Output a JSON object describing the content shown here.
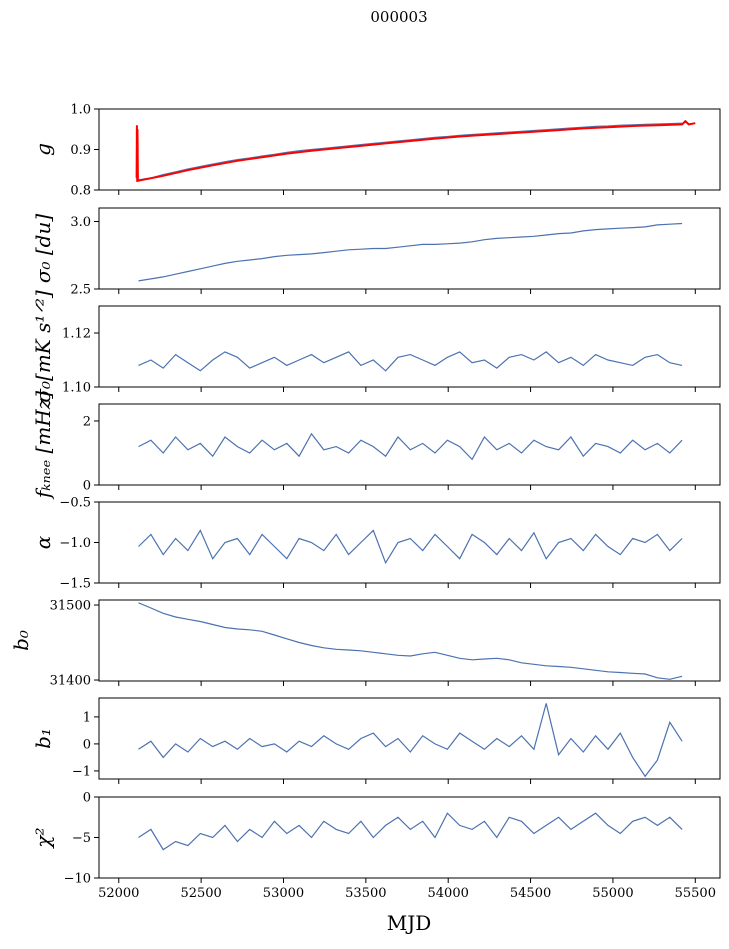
{
  "chart_data": {
    "type": "line",
    "title": "000003",
    "xlabel": "MJD",
    "xlim": [
      51880,
      55650
    ],
    "xticks": [
      52000,
      52500,
      53000,
      53500,
      54000,
      54500,
      55000,
      55500
    ],
    "x": [
      52120,
      52195,
      52270,
      52345,
      52420,
      52495,
      52570,
      52645,
      52720,
      52795,
      52870,
      52945,
      53020,
      53095,
      53170,
      53245,
      53320,
      53395,
      53470,
      53545,
      53620,
      53695,
      53770,
      53845,
      53920,
      53995,
      54070,
      54145,
      54220,
      54295,
      54370,
      54445,
      54520,
      54595,
      54670,
      54745,
      54820,
      54895,
      54970,
      55045,
      55120,
      55195,
      55270,
      55345,
      55420
    ],
    "panels": [
      {
        "ylabel": "g",
        "ylim": [
          0.8,
          1.0
        ],
        "yticks": [
          0.8,
          0.9,
          1.0
        ],
        "ticklabels": [
          "0.8",
          "0.9",
          "1.0"
        ],
        "series": [
          {
            "name": "g",
            "color": "#4c72b0",
            "values": [
              0.825,
              0.83,
              0.838,
              0.845,
              0.852,
              0.858,
              0.864,
              0.87,
              0.875,
              0.879,
              0.884,
              0.888,
              0.893,
              0.897,
              0.9,
              0.903,
              0.906,
              0.909,
              0.912,
              0.915,
              0.918,
              0.921,
              0.924,
              0.927,
              0.93,
              0.932,
              0.935,
              0.937,
              0.939,
              0.941,
              0.943,
              0.945,
              0.947,
              0.949,
              0.951,
              0.953,
              0.955,
              0.957,
              0.958,
              0.96,
              0.961,
              0.962,
              0.963,
              0.964,
              0.965
            ]
          },
          {
            "name": "g_model",
            "color": "#ff0000",
            "x": [
              52108,
              52110,
              52112,
              52114,
              52116,
              52120,
              52270,
              52420,
              52570,
              52720,
              52870,
              53020,
              53170,
              53320,
              53470,
              53620,
              53770,
              53920,
              54070,
              54220,
              54370,
              54520,
              54670,
              54820,
              54970,
              55120,
              55270,
              55420,
              55440,
              55460,
              55500
            ],
            "values": [
              0.83,
              0.96,
              0.82,
              0.95,
              0.825,
              0.823,
              0.835,
              0.849,
              0.861,
              0.872,
              0.881,
              0.89,
              0.897,
              0.903,
              0.909,
              0.915,
              0.921,
              0.927,
              0.932,
              0.936,
              0.94,
              0.944,
              0.948,
              0.952,
              0.955,
              0.958,
              0.96,
              0.962,
              0.97,
              0.962,
              0.965
            ]
          }
        ]
      },
      {
        "ylabel": "σ₀ [du]",
        "ylim": [
          2.5,
          3.1
        ],
        "yticks": [
          2.5,
          3.0
        ],
        "ticklabels": [
          "2.5",
          "3.0"
        ],
        "series": [
          {
            "name": "sigma0_du",
            "color": "#4c72b0",
            "values": [
              2.56,
              2.575,
              2.59,
              2.61,
              2.63,
              2.65,
              2.67,
              2.69,
              2.705,
              2.715,
              2.725,
              2.74,
              2.75,
              2.755,
              2.76,
              2.77,
              2.78,
              2.79,
              2.795,
              2.8,
              2.8,
              2.81,
              2.82,
              2.83,
              2.83,
              2.835,
              2.84,
              2.85,
              2.865,
              2.875,
              2.88,
              2.885,
              2.89,
              2.9,
              2.91,
              2.915,
              2.93,
              2.94,
              2.945,
              2.95,
              2.955,
              2.96,
              2.975,
              2.98,
              2.985
            ]
          }
        ]
      },
      {
        "ylabel": "σ₀[mK s¹ᐟ²]",
        "ylim": [
          1.1,
          1.13
        ],
        "yticks": [
          1.1,
          1.12
        ],
        "ticklabels": [
          "1.10",
          "1.12"
        ],
        "series": [
          {
            "name": "sigma0_mK",
            "color": "#4c72b0",
            "values": [
              1.108,
              1.11,
              1.107,
              1.112,
              1.109,
              1.106,
              1.11,
              1.113,
              1.111,
              1.107,
              1.109,
              1.111,
              1.108,
              1.11,
              1.112,
              1.109,
              1.111,
              1.113,
              1.108,
              1.11,
              1.106,
              1.111,
              1.112,
              1.11,
              1.108,
              1.111,
              1.113,
              1.109,
              1.11,
              1.107,
              1.111,
              1.112,
              1.11,
              1.113,
              1.109,
              1.111,
              1.108,
              1.112,
              1.11,
              1.109,
              1.108,
              1.111,
              1.112,
              1.109,
              1.108
            ]
          }
        ]
      },
      {
        "ylabel": "fₖₙₑₑ [mHz]",
        "ylim": [
          0,
          2.53
        ],
        "yticks": [
          0,
          2
        ],
        "ticklabels": [
          "0",
          "2"
        ],
        "series": [
          {
            "name": "fknee",
            "color": "#4c72b0",
            "values": [
              1.2,
              1.4,
              1.0,
              1.5,
              1.1,
              1.3,
              0.9,
              1.5,
              1.2,
              1.0,
              1.4,
              1.1,
              1.3,
              0.9,
              1.6,
              1.1,
              1.2,
              1.0,
              1.4,
              1.2,
              0.9,
              1.5,
              1.1,
              1.3,
              1.0,
              1.4,
              1.2,
              0.8,
              1.5,
              1.1,
              1.3,
              1.0,
              1.4,
              1.2,
              1.1,
              1.5,
              0.9,
              1.3,
              1.2,
              1.0,
              1.4,
              1.1,
              1.3,
              1.0,
              1.4
            ]
          }
        ]
      },
      {
        "ylabel": "α",
        "ylim": [
          -1.5,
          -0.5
        ],
        "yticks": [
          -1.5,
          -1.0,
          -0.5
        ],
        "ticklabels": [
          "−1.5",
          "−1.0",
          "−0.5"
        ],
        "series": [
          {
            "name": "alpha",
            "color": "#4c72b0",
            "values": [
              -1.05,
              -0.9,
              -1.15,
              -0.95,
              -1.1,
              -0.85,
              -1.2,
              -1.0,
              -0.95,
              -1.15,
              -0.9,
              -1.05,
              -1.2,
              -0.95,
              -1.0,
              -1.1,
              -0.9,
              -1.15,
              -1.0,
              -0.85,
              -1.25,
              -1.0,
              -0.95,
              -1.1,
              -0.9,
              -1.05,
              -1.2,
              -0.9,
              -1.0,
              -1.15,
              -0.95,
              -1.1,
              -0.88,
              -1.2,
              -1.0,
              -0.95,
              -1.1,
              -0.9,
              -1.05,
              -1.15,
              -0.95,
              -1.0,
              -0.9,
              -1.1,
              -0.95
            ]
          }
        ]
      },
      {
        "ylabel": "b₀",
        "ylim": [
          31398.7,
          31506.7
        ],
        "yticks": [
          31400,
          31500
        ],
        "ticklabels": [
          "31400",
          "31500"
        ],
        "series": [
          {
            "name": "b0",
            "color": "#4c72b0",
            "values": [
              31503,
              31496,
              31489,
              31484,
              31481,
              31478,
              31474,
              31470,
              31468,
              31467,
              31465,
              31460,
              31455,
              31450,
              31446,
              31443,
              31441,
              31440,
              31439,
              31437,
              31435,
              31433,
              31432,
              31435,
              31437,
              31433,
              31429,
              31427,
              31428,
              31429,
              31427,
              31423,
              31421,
              31419,
              31418,
              31417,
              31415,
              31413,
              31411,
              31410,
              31409,
              31408,
              31403,
              31401,
              31405
            ]
          }
        ]
      },
      {
        "ylabel": "b₁",
        "ylim": [
          -1.3,
          1.7
        ],
        "yticks": [
          -1,
          0,
          1
        ],
        "ticklabels": [
          "−1",
          "0",
          "1"
        ],
        "series": [
          {
            "name": "b1",
            "color": "#4c72b0",
            "values": [
              -0.2,
              0.1,
              -0.5,
              0.0,
              -0.3,
              0.2,
              -0.1,
              0.1,
              -0.2,
              0.2,
              -0.1,
              0.0,
              -0.3,
              0.1,
              -0.1,
              0.3,
              0.0,
              -0.2,
              0.2,
              0.4,
              -0.1,
              0.2,
              -0.3,
              0.3,
              0.0,
              -0.2,
              0.4,
              0.1,
              -0.2,
              0.2,
              -0.1,
              0.3,
              -0.2,
              1.5,
              -0.4,
              0.2,
              -0.3,
              0.3,
              -0.2,
              0.4,
              -0.5,
              -1.2,
              -0.6,
              0.8,
              0.1
            ]
          }
        ]
      },
      {
        "ylabel": "χ²",
        "ylim": [
          -10,
          0
        ],
        "yticks": [
          -10,
          -5,
          0
        ],
        "ticklabels": [
          "−10",
          "−5",
          "0"
        ],
        "series": [
          {
            "name": "chi2",
            "color": "#4c72b0",
            "values": [
              -5,
              -4,
              -6.5,
              -5.5,
              -6,
              -4.5,
              -5,
              -3.5,
              -5.5,
              -4,
              -5,
              -3,
              -4.5,
              -3.5,
              -5,
              -3,
              -4,
              -4.5,
              -3,
              -5,
              -3.5,
              -2.5,
              -4,
              -3,
              -5,
              -2,
              -3.5,
              -4,
              -3,
              -5,
              -2.5,
              -3,
              -4.5,
              -3.5,
              -2.5,
              -4,
              -3,
              -2,
              -3.5,
              -4.5,
              -3,
              -2.5,
              -3.5,
              -2.5,
              -4
            ]
          }
        ]
      }
    ]
  }
}
